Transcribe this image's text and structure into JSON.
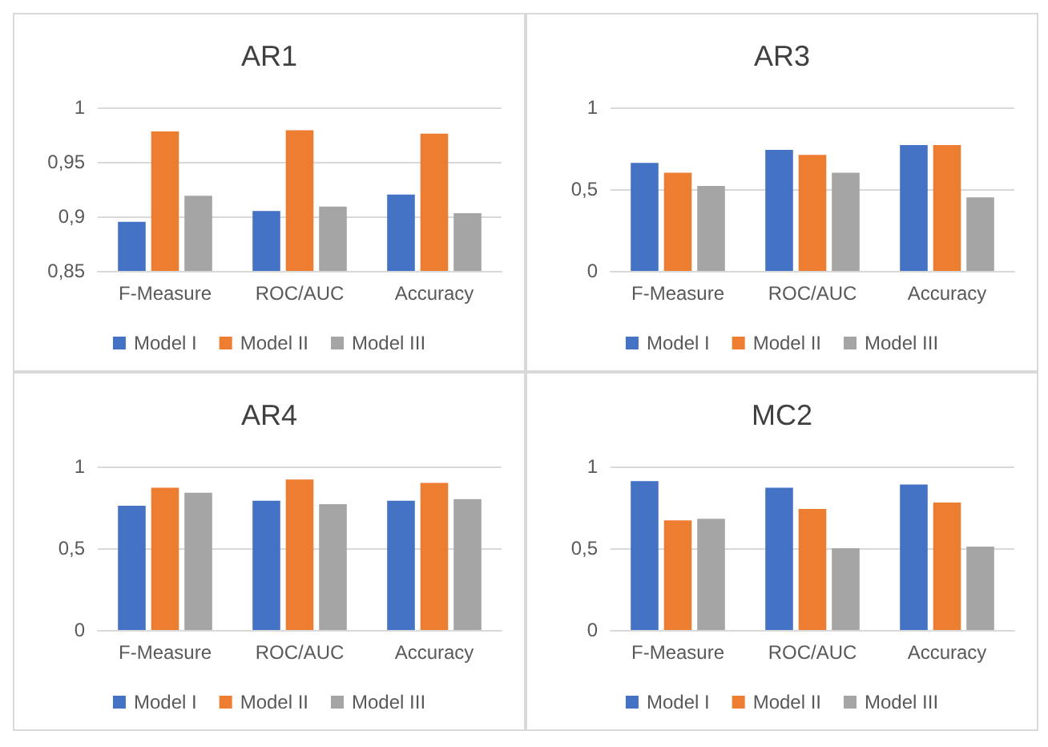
{
  "chart_data": [
    {
      "type": "bar",
      "title": "AR1",
      "categories": [
        "F-Measure",
        "ROC/AUC",
        "Accuracy"
      ],
      "series": [
        {
          "name": "Model I",
          "color": "#4472c4",
          "values": [
            0.895,
            0.905,
            0.92
          ]
        },
        {
          "name": "Model II",
          "color": "#ed7d31",
          "values": [
            0.978,
            0.979,
            0.976
          ]
        },
        {
          "name": "Model III",
          "color": "#a5a5a5",
          "values": [
            0.919,
            0.909,
            0.903
          ]
        }
      ],
      "ylim": [
        0.85,
        1
      ],
      "yticks": [
        {
          "value": 0.85,
          "label": "0,85"
        },
        {
          "value": 0.9,
          "label": "0,9"
        },
        {
          "value": 0.95,
          "label": "0,95"
        },
        {
          "value": 1,
          "label": "1"
        }
      ],
      "grid": "y",
      "legend": "bottom"
    },
    {
      "type": "bar",
      "title": "AR3",
      "categories": [
        "F-Measure",
        "ROC/AUC",
        "Accuracy"
      ],
      "series": [
        {
          "name": "Model I",
          "color": "#4472c4",
          "values": [
            0.66,
            0.74,
            0.77
          ]
        },
        {
          "name": "Model II",
          "color": "#ed7d31",
          "values": [
            0.6,
            0.71,
            0.77
          ]
        },
        {
          "name": "Model III",
          "color": "#a5a5a5",
          "values": [
            0.52,
            0.6,
            0.45
          ]
        }
      ],
      "ylim": [
        0,
        1
      ],
      "yticks": [
        {
          "value": 0,
          "label": "0"
        },
        {
          "value": 0.5,
          "label": "0,5"
        },
        {
          "value": 1,
          "label": "1"
        }
      ],
      "grid": "y",
      "legend": "bottom"
    },
    {
      "type": "bar",
      "title": "AR4",
      "categories": [
        "F-Measure",
        "ROC/AUC",
        "Accuracy"
      ],
      "series": [
        {
          "name": "Model I",
          "color": "#4472c4",
          "values": [
            0.76,
            0.79,
            0.79
          ]
        },
        {
          "name": "Model II",
          "color": "#ed7d31",
          "values": [
            0.87,
            0.92,
            0.9
          ]
        },
        {
          "name": "Model III",
          "color": "#a5a5a5",
          "values": [
            0.84,
            0.77,
            0.8
          ]
        }
      ],
      "ylim": [
        0,
        1
      ],
      "yticks": [
        {
          "value": 0,
          "label": "0"
        },
        {
          "value": 0.5,
          "label": "0,5"
        },
        {
          "value": 1,
          "label": "1"
        }
      ],
      "grid": "y",
      "legend": "bottom"
    },
    {
      "type": "bar",
      "title": "MC2",
      "categories": [
        "F-Measure",
        "ROC/AUC",
        "Accuracy"
      ],
      "series": [
        {
          "name": "Model I",
          "color": "#4472c4",
          "values": [
            0.91,
            0.87,
            0.89
          ]
        },
        {
          "name": "Model II",
          "color": "#ed7d31",
          "values": [
            0.67,
            0.74,
            0.78
          ]
        },
        {
          "name": "Model III",
          "color": "#a5a5a5",
          "values": [
            0.68,
            0.5,
            0.51
          ]
        }
      ],
      "ylim": [
        0,
        1
      ],
      "yticks": [
        {
          "value": 0,
          "label": "0"
        },
        {
          "value": 0.5,
          "label": "0,5"
        },
        {
          "value": 1,
          "label": "1"
        }
      ],
      "grid": "y",
      "legend": "bottom"
    }
  ]
}
